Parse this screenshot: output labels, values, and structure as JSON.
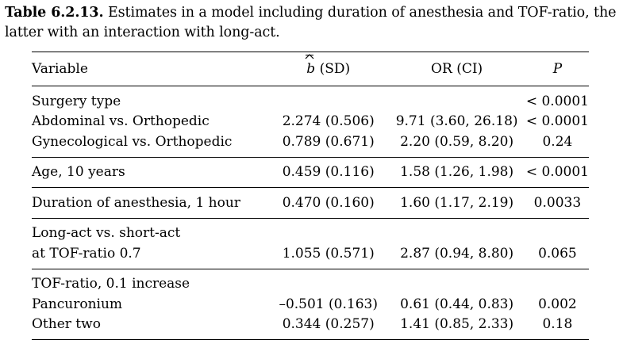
{
  "caption": {
    "label": "Table 6.2.13.",
    "text": "Estimates in a model including duration of anesthesia and TOF-ratio, the latter with an interaction with long-act."
  },
  "table": {
    "headers": {
      "variable": "Variable",
      "b_symbol": "b",
      "b_suffix": "(SD)",
      "or": "OR (CI)",
      "p": "P"
    },
    "groups": [
      {
        "rows": [
          {
            "variable": "Surgery type",
            "b": "",
            "or": "",
            "p": "< 0.0001"
          },
          {
            "variable": "Abdominal vs. Orthopedic",
            "b": "2.274 (0.506)",
            "or": "9.71 (3.60, 26.18)",
            "p": "< 0.0001"
          },
          {
            "variable": "Gynecological vs. Orthopedic",
            "b": "0.789 (0.671)",
            "or": "2.20 (0.59, 8.20)",
            "p": "0.24"
          }
        ]
      },
      {
        "rows": [
          {
            "variable": "Age, 10 years",
            "b": "0.459 (0.116)",
            "or": "1.58 (1.26, 1.98)",
            "p": "< 0.0001"
          }
        ]
      },
      {
        "rows": [
          {
            "variable": "Duration of anesthesia, 1 hour",
            "b": "0.470 (0.160)",
            "or": "1.60 (1.17, 2.19)",
            "p": "0.0033"
          }
        ]
      },
      {
        "rows": [
          {
            "variable": "Long-act vs. short-act",
            "b": "",
            "or": "",
            "p": ""
          },
          {
            "variable": "at TOF-ratio 0.7",
            "b": "1.055 (0.571)",
            "or": "2.87 (0.94, 8.80)",
            "p": "0.065"
          }
        ]
      },
      {
        "rows": [
          {
            "variable": "TOF-ratio, 0.1 increase",
            "b": "",
            "or": "",
            "p": ""
          },
          {
            "variable": "Pancuronium",
            "b": "–0.501 (0.163)",
            "or": "0.61 (0.44, 0.83)",
            "p": "0.002"
          },
          {
            "variable": "Other two",
            "b": "0.344 (0.257)",
            "or": "1.41 (0.85, 2.33)",
            "p": "0.18"
          }
        ]
      }
    ]
  }
}
